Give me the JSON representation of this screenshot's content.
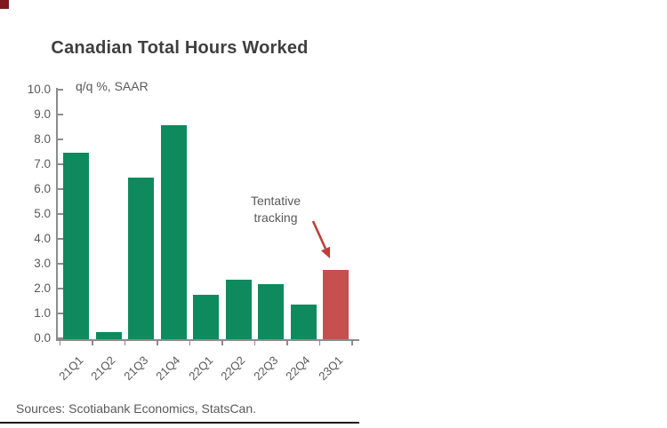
{
  "page": {
    "background": "#FFFFFF",
    "corner_square_color": "#7D1A1E"
  },
  "chart": {
    "annotation_line1": "Tentative",
    "annotation_line2": "tracking"
  },
  "chart_data": {
    "type": "bar",
    "title": "Canadian Total Hours Worked",
    "ylabel": "q/q %, SAAR",
    "xlabel": "",
    "categories": [
      "21Q1",
      "21Q2",
      "21Q3",
      "21Q4",
      "22Q1",
      "22Q2",
      "22Q3",
      "22Q4",
      "23Q1"
    ],
    "values": [
      7.5,
      0.3,
      6.5,
      8.6,
      1.8,
      2.4,
      2.2,
      1.4,
      2.8
    ],
    "highlight_category": "23Q1",
    "highlight_note": "Tentative tracking",
    "ylim": [
      0,
      10
    ],
    "ytick_labels": [
      "10.0",
      "9.0",
      "8.0",
      "7.0",
      "6.0",
      "5.0",
      "4.0",
      "3.0",
      "2.0",
      "1.0",
      "0.0"
    ],
    "grid": false,
    "legend_position": "none",
    "bar_color_default": "#0E8A5E",
    "bar_color_highlight": "#C5504E",
    "arrow_color": "#BE3F3B",
    "axis_color": "#8C8C8C",
    "label_color": "#595959",
    "title_color": "#3F3F3F",
    "source": "Sources: Scotiabank Economics, StatsCan."
  }
}
